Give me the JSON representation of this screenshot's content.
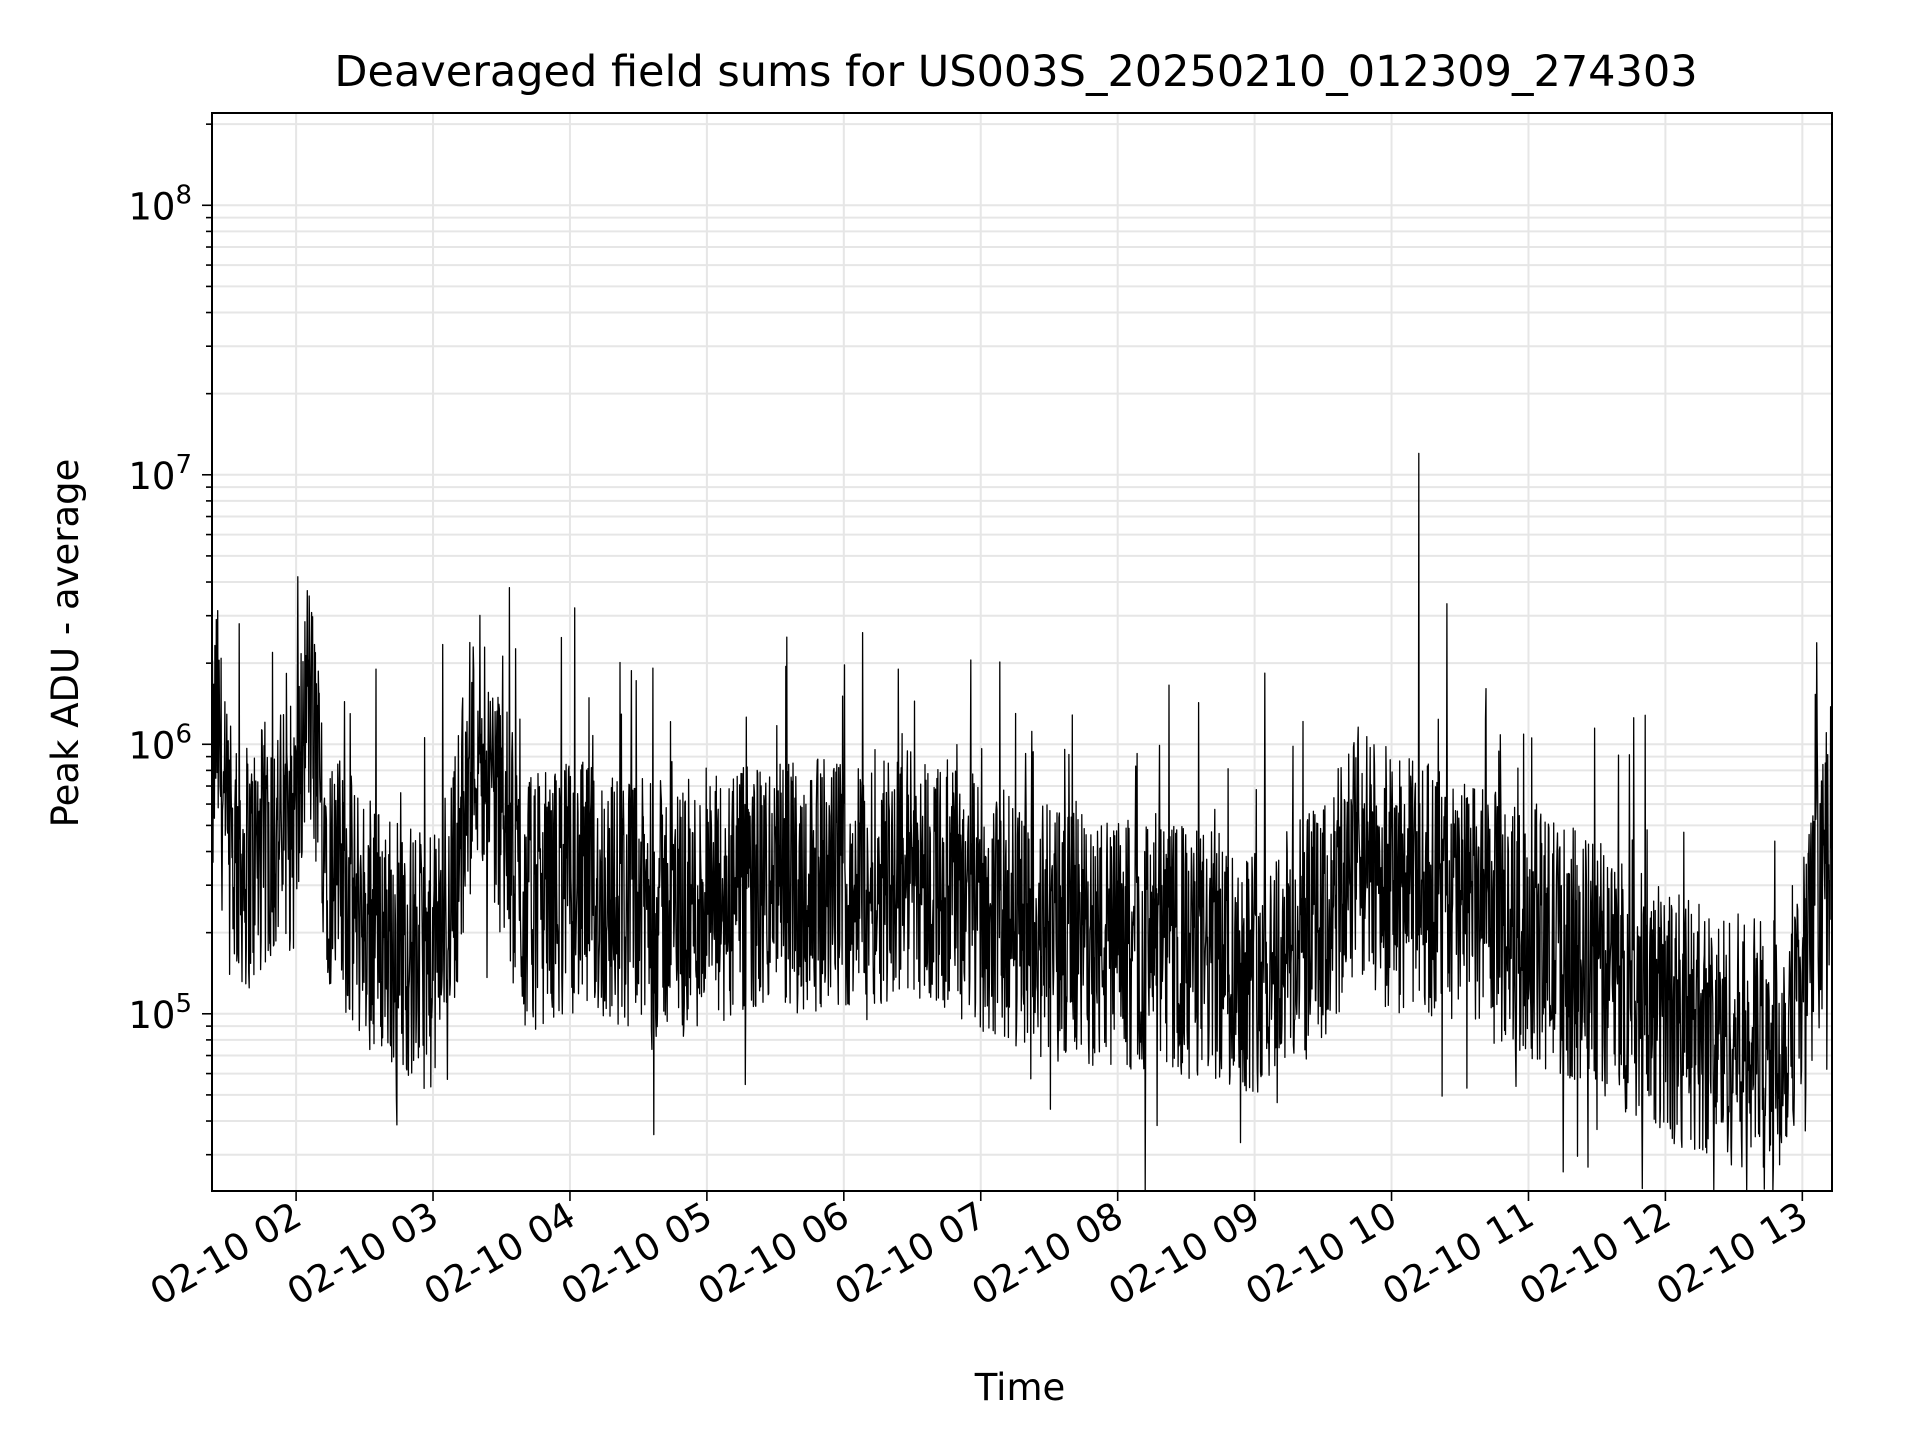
{
  "chart_data": {
    "type": "line",
    "title": "Deaveraged field sums for US003S_20250210_012309_274303",
    "xlabel": "Time",
    "ylabel": "Peak ADU - average",
    "yscale": "log",
    "grid": true,
    "line_color": "#000000",
    "grid_color": "#e6e6e6",
    "xlim": [
      "2025-02-10 01:23:09",
      "2025-02-10 13:13:00"
    ],
    "ylim": [
      22000,
      220000000
    ],
    "x_ticks": [
      {
        "time": "2025-02-10 02:00",
        "label": "02-10 02"
      },
      {
        "time": "2025-02-10 03:00",
        "label": "02-10 03"
      },
      {
        "time": "2025-02-10 04:00",
        "label": "02-10 04"
      },
      {
        "time": "2025-02-10 05:00",
        "label": "02-10 05"
      },
      {
        "time": "2025-02-10 06:00",
        "label": "02-10 06"
      },
      {
        "time": "2025-02-10 07:00",
        "label": "02-10 07"
      },
      {
        "time": "2025-02-10 08:00",
        "label": "02-10 08"
      },
      {
        "time": "2025-02-10 09:00",
        "label": "02-10 09"
      },
      {
        "time": "2025-02-10 10:00",
        "label": "02-10 10"
      },
      {
        "time": "2025-02-10 11:00",
        "label": "02-10 11"
      },
      {
        "time": "2025-02-10 12:00",
        "label": "02-10 12"
      },
      {
        "time": "2025-02-10 13:00",
        "label": "02-10 13"
      }
    ],
    "y_ticks": [
      {
        "value": 100000,
        "base": "10",
        "exp": "5"
      },
      {
        "value": 1000000,
        "base": "10",
        "exp": "6"
      },
      {
        "value": 10000000,
        "base": "10",
        "exp": "7"
      },
      {
        "value": 100000000,
        "base": "10",
        "exp": "8"
      }
    ],
    "series": [
      {
        "points": [
          [
            "2025-02-10 01:23",
            600000
          ],
          [
            "2025-02-10 01:25",
            1300000
          ],
          [
            "2025-02-10 01:30",
            400000
          ],
          [
            "2025-02-10 01:35",
            2800000
          ],
          [
            "2025-02-10 01:40",
            350000
          ],
          [
            "2025-02-10 01:50",
            450000
          ],
          [
            "2025-02-10 02:00",
            500000
          ],
          [
            "2025-02-10 02:05",
            1600000
          ],
          [
            "2025-02-10 02:15",
            350000
          ],
          [
            "2025-02-10 02:25",
            250000
          ],
          [
            "2025-02-10 02:35",
            1900000
          ],
          [
            "2025-02-10 02:45",
            180000
          ],
          [
            "2025-02-10 03:00",
            150000
          ],
          [
            "2025-02-10 03:10",
            350000
          ],
          [
            "2025-02-10 03:20",
            1200000
          ],
          [
            "2025-02-10 03:40",
            250000
          ],
          [
            "2025-02-10 04:00",
            300000
          ],
          [
            "2025-02-10 04:30",
            250000
          ],
          [
            "2025-02-10 05:00",
            250000
          ],
          [
            "2025-02-10 05:30",
            300000
          ],
          [
            "2025-02-10 06:00",
            300000
          ],
          [
            "2025-02-10 06:30",
            350000
          ],
          [
            "2025-02-10 07:00",
            250000
          ],
          [
            "2025-02-10 07:30",
            200000
          ],
          [
            "2025-02-10 08:00",
            180000
          ],
          [
            "2025-02-10 08:30",
            170000
          ],
          [
            "2025-02-10 09:00",
            150000
          ],
          [
            "2025-02-10 09:30",
            200000
          ],
          [
            "2025-02-10 09:45",
            400000
          ],
          [
            "2025-02-10 10:00",
            300000
          ],
          [
            "2025-02-10 10:12",
            12000000
          ],
          [
            "2025-02-10 10:15",
            300000
          ],
          [
            "2025-02-10 10:30",
            250000
          ],
          [
            "2025-02-10 11:00",
            200000
          ],
          [
            "2025-02-10 11:30",
            150000
          ],
          [
            "2025-02-10 12:00",
            100000
          ],
          [
            "2025-02-10 12:30",
            80000
          ],
          [
            "2025-02-10 12:50",
            75000
          ],
          [
            "2025-02-10 13:05",
            200000
          ],
          [
            "2025-02-10 13:13",
            500000
          ]
        ]
      }
    ]
  }
}
